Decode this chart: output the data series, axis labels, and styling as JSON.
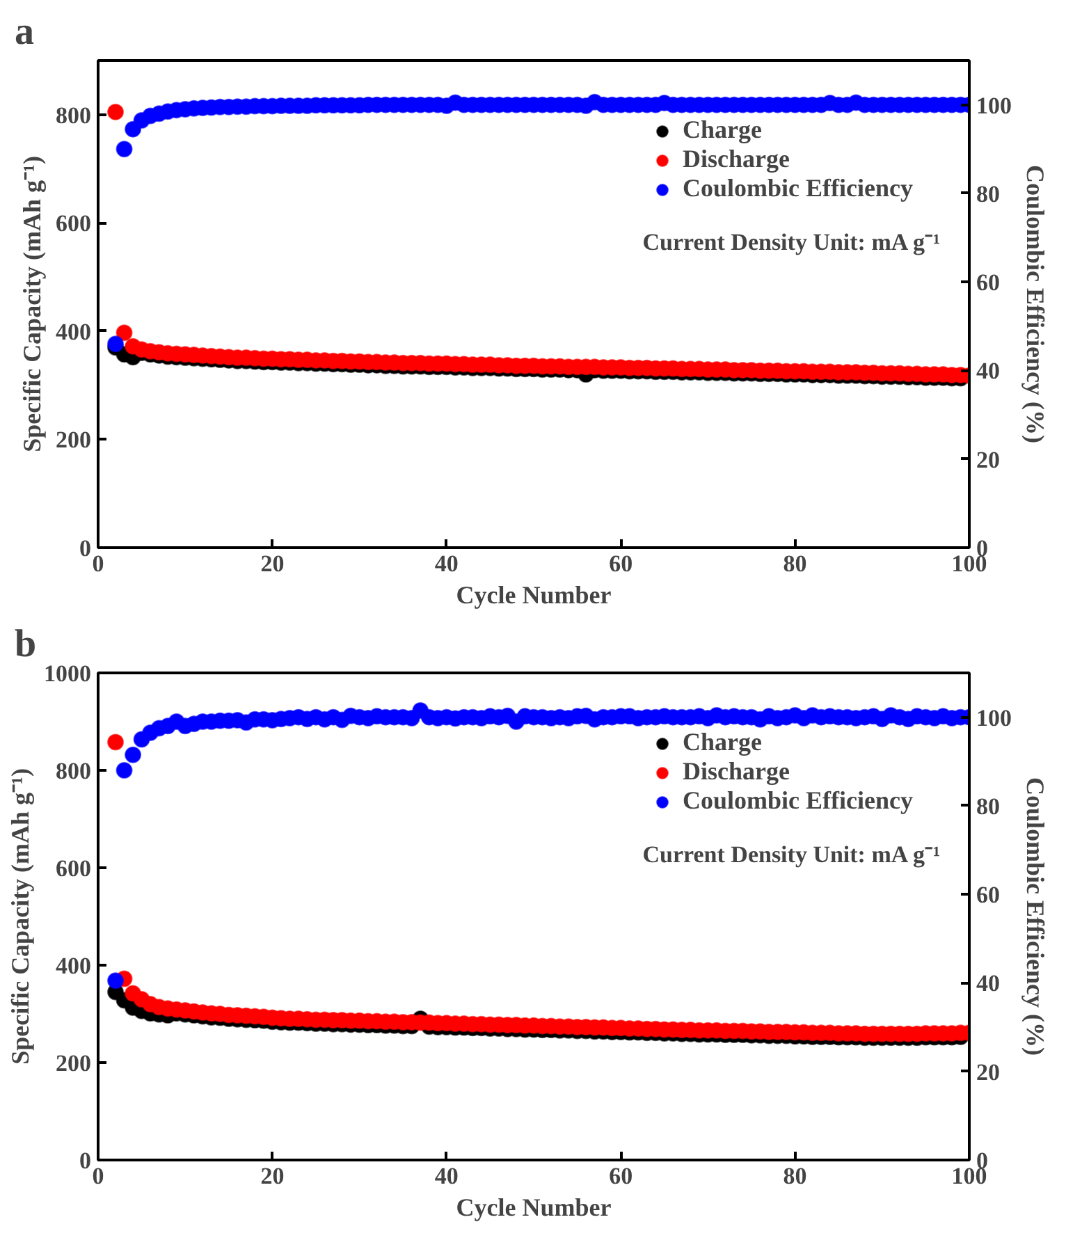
{
  "chart_data": [
    {
      "type": "scatter",
      "title": "a",
      "xlabel": "Cycle Number",
      "ylabel": "Specific Capacity (mAh g⁻¹)",
      "y2label": "Coulombic Efficiency (%)",
      "annotations": [
        "Current Density Unit: mA g⁻¹"
      ],
      "xlim": [
        0,
        100
      ],
      "xticks": [
        0,
        20,
        40,
        60,
        80,
        100
      ],
      "ylim": [
        0,
        900
      ],
      "yticks": [
        0,
        200,
        400,
        600,
        800
      ],
      "y2lim": [
        0,
        110
      ],
      "y2ticks": [
        0,
        20,
        40,
        60,
        80,
        100
      ],
      "legend": "top right",
      "marker": "circle",
      "x": [
        2,
        3,
        4,
        5,
        6,
        7,
        8,
        9,
        10,
        11,
        12,
        13,
        14,
        15,
        16,
        17,
        18,
        19,
        20,
        21,
        22,
        23,
        24,
        25,
        26,
        27,
        28,
        29,
        30,
        31,
        32,
        33,
        34,
        35,
        36,
        37,
        38,
        39,
        40,
        41,
        42,
        43,
        44,
        45,
        46,
        47,
        48,
        49,
        50,
        51,
        52,
        53,
        54,
        55,
        56,
        57,
        58,
        59,
        60,
        61,
        62,
        63,
        64,
        65,
        66,
        67,
        68,
        69,
        70,
        71,
        72,
        73,
        74,
        75,
        76,
        77,
        78,
        79,
        80,
        81,
        82,
        83,
        84,
        85,
        86,
        87,
        88,
        89,
        90,
        91,
        92,
        93,
        94,
        95,
        96,
        97,
        98,
        99,
        100
      ],
      "series": [
        {
          "name": "Charge",
          "color": "#000000",
          "values": [
            370,
            357,
            352,
            360,
            357,
            355,
            353,
            352,
            351,
            350,
            349,
            348,
            347,
            346,
            345,
            345,
            344,
            343,
            343,
            342,
            342,
            341,
            341,
            340,
            340,
            339,
            339,
            338,
            338,
            337,
            337,
            336,
            336,
            335,
            335,
            335,
            334,
            334,
            334,
            333,
            333,
            332,
            332,
            332,
            331,
            331,
            330,
            330,
            330,
            329,
            329,
            329,
            328,
            328,
            320,
            328,
            327,
            327,
            327,
            326,
            326,
            326,
            325,
            325,
            325,
            324,
            324,
            324,
            323,
            323,
            323,
            322,
            322,
            322,
            321,
            321,
            321,
            320,
            320,
            320,
            319,
            319,
            319,
            318,
            318,
            318,
            317,
            317,
            316,
            316,
            316,
            315,
            315,
            314,
            314,
            314,
            313,
            313,
            null
          ]
        },
        {
          "name": "Discharge",
          "color": "#ff0000",
          "values": [
            805,
            397,
            372,
            366,
            363,
            361,
            359,
            358,
            357,
            356,
            355,
            354,
            353,
            352,
            351,
            351,
            350,
            349,
            349,
            348,
            348,
            347,
            347,
            346,
            346,
            345,
            345,
            344,
            344,
            343,
            343,
            342,
            342,
            341,
            341,
            341,
            340,
            340,
            340,
            339,
            339,
            338,
            338,
            338,
            337,
            337,
            336,
            336,
            336,
            335,
            335,
            335,
            334,
            334,
            334,
            334,
            333,
            333,
            333,
            332,
            332,
            332,
            331,
            331,
            331,
            330,
            330,
            330,
            329,
            329,
            329,
            328,
            328,
            328,
            327,
            327,
            327,
            326,
            326,
            326,
            325,
            325,
            325,
            324,
            324,
            324,
            323,
            323,
            322,
            322,
            322,
            321,
            321,
            320,
            320,
            320,
            319,
            319,
            318
          ]
        },
        {
          "name": "Coulombic Efficiency",
          "color": "#0000ff",
          "axis": "y2",
          "values": [
            46,
            90,
            94.5,
            96.5,
            97.5,
            98,
            98.5,
            98.8,
            99,
            99.2,
            99.3,
            99.4,
            99.5,
            99.5,
            99.6,
            99.6,
            99.7,
            99.7,
            99.7,
            99.8,
            99.8,
            99.8,
            99.8,
            99.9,
            99.9,
            99.9,
            99.9,
            99.9,
            99.9,
            100,
            100,
            100,
            100,
            100,
            100,
            100,
            100,
            100,
            99.8,
            100.5,
            100,
            100,
            100,
            100,
            100,
            100,
            100,
            100,
            100,
            100,
            100,
            100,
            100,
            100,
            99.8,
            100.6,
            100,
            100,
            100,
            100,
            100,
            100,
            100,
            100.4,
            100,
            100,
            100,
            100,
            100,
            100,
            100,
            100,
            100,
            100,
            100,
            100,
            100,
            100,
            100,
            100,
            100,
            100,
            100.4,
            100,
            100,
            100.5,
            100,
            100,
            100,
            100,
            100,
            100,
            100,
            100,
            100,
            100,
            100,
            100,
            100
          ]
        }
      ]
    },
    {
      "type": "scatter",
      "title": "b",
      "xlabel": "Cycle Number",
      "ylabel": "Specific Capacity (mAh g⁻¹)",
      "y2label": "Coulombic Efficiency (%)",
      "annotations": [
        "Current Density Unit: mA g⁻¹"
      ],
      "xlim": [
        0,
        100
      ],
      "xticks": [
        0,
        20,
        40,
        60,
        80,
        100
      ],
      "ylim": [
        0,
        1000
      ],
      "yticks": [
        0,
        200,
        400,
        600,
        800,
        1000
      ],
      "y2lim": [
        0,
        110
      ],
      "y2ticks": [
        0,
        20,
        40,
        60,
        80,
        100
      ],
      "legend": "top right",
      "marker": "circle",
      "x": [
        2,
        3,
        4,
        5,
        6,
        7,
        8,
        9,
        10,
        11,
        12,
        13,
        14,
        15,
        16,
        17,
        18,
        19,
        20,
        21,
        22,
        23,
        24,
        25,
        26,
        27,
        28,
        29,
        30,
        31,
        32,
        33,
        34,
        35,
        36,
        37,
        38,
        39,
        40,
        41,
        42,
        43,
        44,
        45,
        46,
        47,
        48,
        49,
        50,
        51,
        52,
        53,
        54,
        55,
        56,
        57,
        58,
        59,
        60,
        61,
        62,
        63,
        64,
        65,
        66,
        67,
        68,
        69,
        70,
        71,
        72,
        73,
        74,
        75,
        76,
        77,
        78,
        79,
        80,
        81,
        82,
        83,
        84,
        85,
        86,
        87,
        88,
        89,
        90,
        91,
        92,
        93,
        94,
        95,
        96,
        97,
        98,
        99,
        100
      ],
      "series": [
        {
          "name": "Charge",
          "color": "#000000",
          "values": [
            345,
            328,
            313,
            306,
            301,
            299,
            297,
            301,
            299,
            297,
            295,
            293,
            292,
            290,
            289,
            288,
            287,
            286,
            284,
            283,
            282,
            282,
            281,
            280,
            280,
            279,
            279,
            278,
            278,
            277,
            277,
            276,
            276,
            275,
            275,
            290,
            274,
            273,
            273,
            272,
            272,
            271,
            271,
            270,
            270,
            269,
            269,
            268,
            268,
            267,
            267,
            266,
            266,
            265,
            265,
            264,
            264,
            263,
            263,
            262,
            262,
            261,
            261,
            260,
            260,
            259,
            259,
            258,
            258,
            258,
            257,
            257,
            257,
            256,
            256,
            255,
            255,
            255,
            254,
            254,
            253,
            253,
            253,
            252,
            252,
            252,
            251,
            251,
            251,
            251,
            251,
            251,
            251,
            252,
            252,
            252,
            252,
            253,
            null
          ]
        },
        {
          "name": "Discharge",
          "color": "#ff0000",
          "values": [
            858,
            372,
            342,
            330,
            320,
            314,
            311,
            309,
            307,
            305,
            303,
            301,
            300,
            298,
            297,
            296,
            295,
            294,
            292,
            291,
            290,
            290,
            289,
            288,
            288,
            287,
            287,
            286,
            286,
            285,
            285,
            284,
            284,
            283,
            283,
            282,
            282,
            281,
            281,
            280,
            280,
            279,
            279,
            278,
            278,
            277,
            277,
            276,
            276,
            275,
            275,
            274,
            274,
            273,
            273,
            272,
            272,
            271,
            271,
            270,
            270,
            269,
            269,
            268,
            268,
            267,
            267,
            266,
            266,
            266,
            265,
            265,
            265,
            264,
            264,
            263,
            263,
            263,
            262,
            262,
            261,
            261,
            261,
            260,
            260,
            260,
            259,
            259,
            259,
            259,
            259,
            259,
            259,
            260,
            260,
            260,
            260,
            261,
            261
          ]
        },
        {
          "name": "Coulombic Efficiency",
          "color": "#0000ff",
          "axis": "y2",
          "values": [
            40.5,
            88,
            91.5,
            95,
            96.5,
            97.5,
            98,
            99,
            98,
            98.5,
            99,
            99,
            99.2,
            99.2,
            99.3,
            98.8,
            99.5,
            99.5,
            99.3,
            99.6,
            99.8,
            100,
            99.6,
            100,
            99.5,
            100,
            99.4,
            100.3,
            100,
            99.8,
            100.2,
            100,
            100,
            100,
            99.8,
            101.5,
            100,
            99.8,
            100,
            99.7,
            100,
            100,
            99.8,
            100.2,
            100,
            100.3,
            99,
            100.2,
            100,
            100,
            99.8,
            100,
            99.8,
            100.2,
            100.3,
            99.5,
            100,
            100,
            100.2,
            100.2,
            99.8,
            100,
            100,
            100.2,
            100,
            100,
            100,
            100.2,
            99.8,
            100.4,
            100,
            100.2,
            100,
            100,
            99.5,
            100.2,
            99.8,
            100,
            100.4,
            99.8,
            100.4,
            100,
            100.2,
            100,
            100,
            99.8,
            100,
            100.2,
            99.6,
            100.4,
            100,
            99.6,
            100.2,
            100,
            99.8,
            100.2,
            99.8,
            100,
            100
          ]
        }
      ]
    }
  ]
}
